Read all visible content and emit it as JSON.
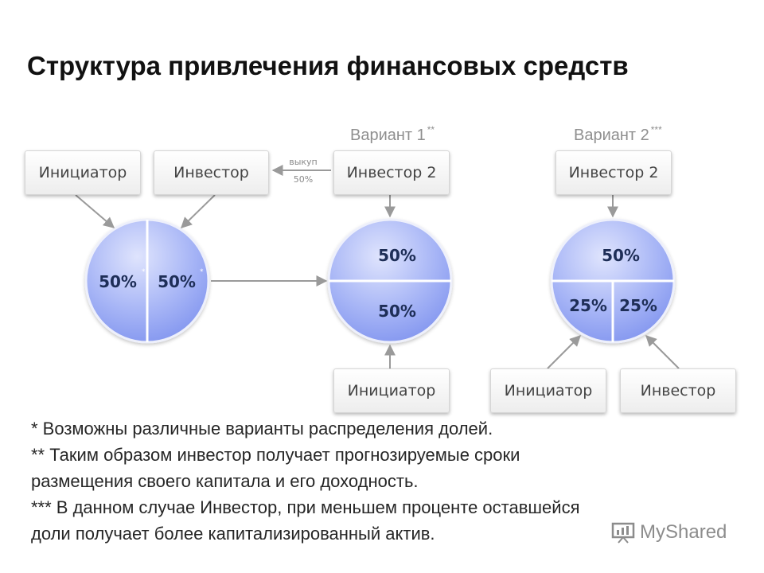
{
  "title": "Структура привлечения финансовых средств",
  "variants": {
    "v1": {
      "label": "Вариант 1",
      "mark": "**"
    },
    "v2": {
      "label": "Вариант 2",
      "mark": "***"
    }
  },
  "boxes": {
    "initiator_left": "Инициатор",
    "investor_left": "Инвестор",
    "investor2_v1": "Инвестор 2",
    "initiator_v1": "Инициатор",
    "investor2_v2": "Инвестор 2",
    "initiator_v2": "Инициатор",
    "investor_v2": "Инвестор"
  },
  "buyout": {
    "line1": "выкуп",
    "line2": "50%"
  },
  "pies": {
    "left": {
      "a": "50%",
      "b": "50%",
      "mark_a": "*",
      "mark_b": "*"
    },
    "v1": {
      "top": "50%",
      "bottom": "50%"
    },
    "v2": {
      "top": "50%",
      "bottom_left": "25%",
      "bottom_right": "25%"
    }
  },
  "colors": {
    "pie_light": "#d9dffc",
    "pie_dark": "#7f93ef",
    "arrow": "#9a9a9a"
  },
  "notes": [
    "* Возможны различные варианты распределения долей.",
    "** Таким образом инвестор получает прогнозируемые сроки",
    "размещения своего капитала и его доходность.",
    "*** В данном случае Инвестор, при меньшем проценте оставшейся",
    "доли получает более капитализированный актив."
  ],
  "logo": {
    "text": "MyShared",
    "icon": "presentation-board-icon"
  }
}
